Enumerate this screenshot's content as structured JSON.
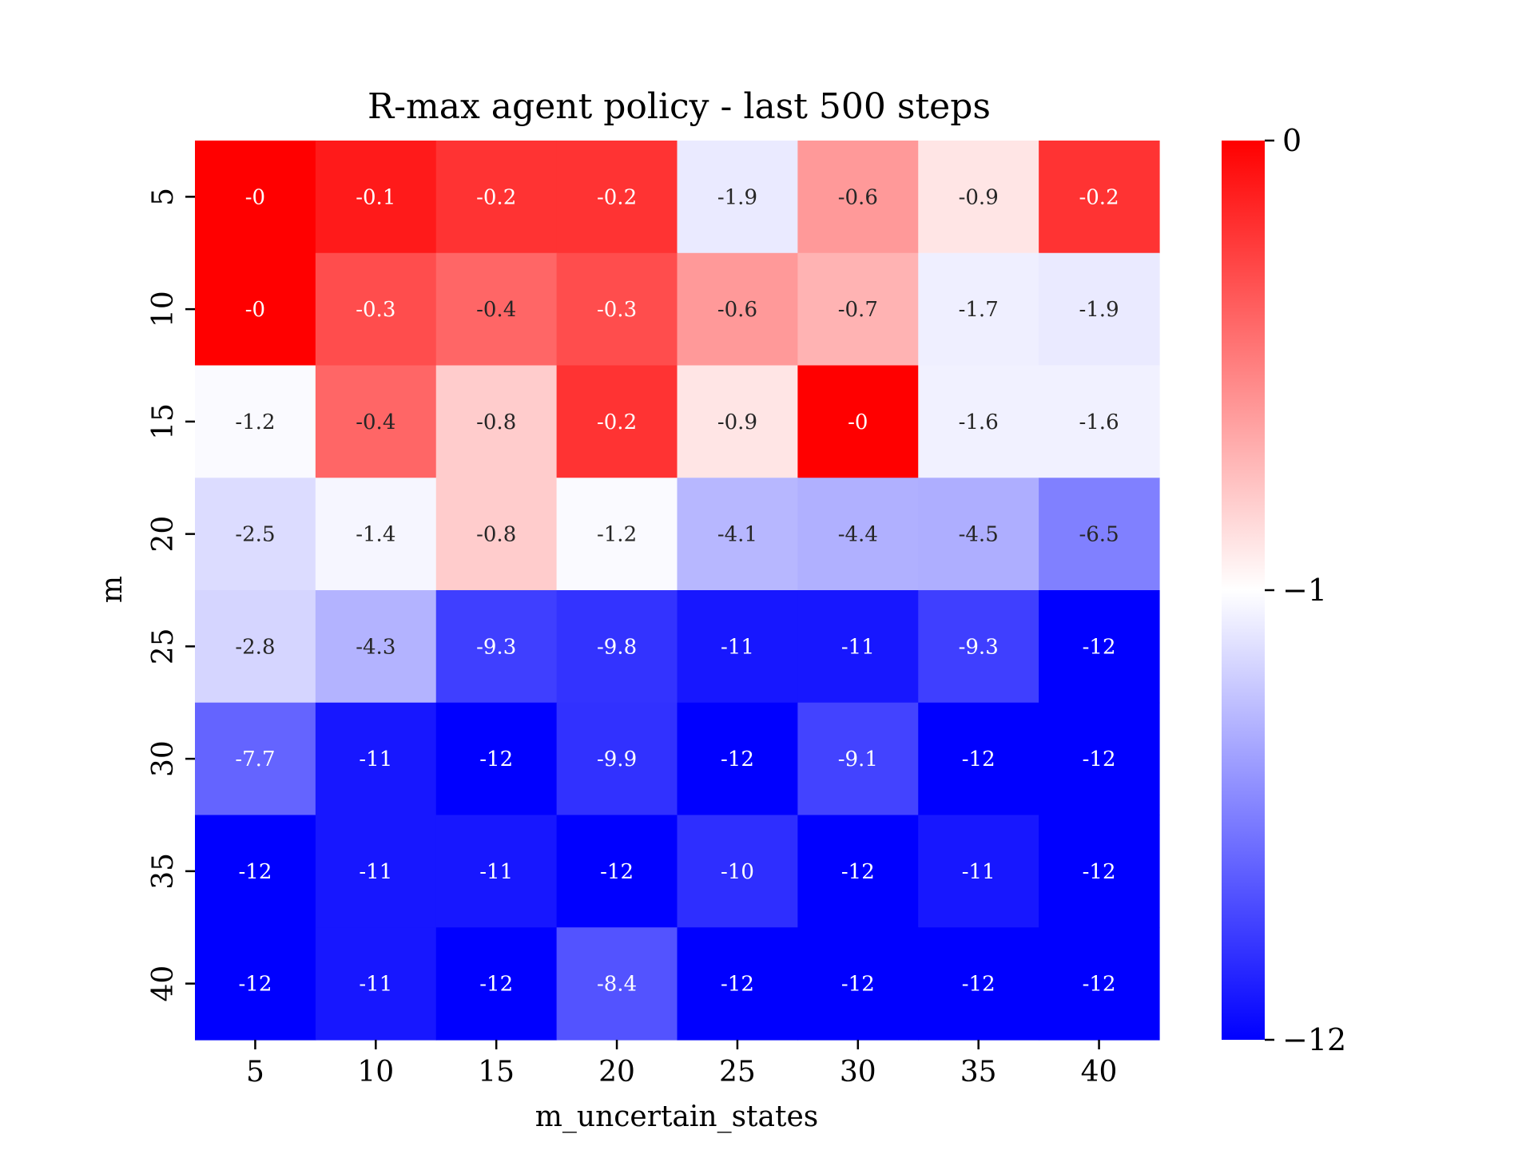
{
  "chart_data": {
    "type": "heatmap",
    "title": "R-max agent policy - last 500 steps",
    "xlabel": "m_uncertain_states",
    "ylabel": "m",
    "x_categories": [
      "5",
      "10",
      "15",
      "20",
      "25",
      "30",
      "35",
      "40"
    ],
    "y_categories": [
      "5",
      "10",
      "15",
      "20",
      "25",
      "30",
      "35",
      "40"
    ],
    "values": [
      [
        0,
        -0.1,
        -0.2,
        -0.2,
        -1.9,
        -0.6,
        -0.9,
        -0.2
      ],
      [
        0,
        -0.3,
        -0.4,
        -0.3,
        -0.6,
        -0.7,
        -1.7,
        -1.9
      ],
      [
        -1.2,
        -0.4,
        -0.8,
        -0.2,
        -0.9,
        0,
        -1.6,
        -1.6
      ],
      [
        -2.5,
        -1.4,
        -0.8,
        -1.2,
        -4.1,
        -4.4,
        -4.5,
        -6.5
      ],
      [
        -2.8,
        -4.3,
        -9.3,
        -9.8,
        -11,
        -11,
        -9.3,
        -12
      ],
      [
        -7.7,
        -11,
        -12,
        -9.9,
        -12,
        -9.1,
        -12,
        -12
      ],
      [
        -12,
        -11,
        -11,
        -12,
        -10,
        -12,
        -11,
        -12
      ],
      [
        -12,
        -11,
        -12,
        -8.4,
        -12,
        -12,
        -12,
        -12
      ]
    ],
    "labels": [
      [
        "-0",
        "-0.1",
        "-0.2",
        "-0.2",
        "-1.9",
        "-0.6",
        "-0.9",
        "-0.2"
      ],
      [
        "-0",
        "-0.3",
        "-0.4",
        "-0.3",
        "-0.6",
        "-0.7",
        "-1.7",
        "-1.9"
      ],
      [
        "-1.2",
        "-0.4",
        "-0.8",
        "-0.2",
        "-0.9",
        "-0",
        "-1.6",
        "-1.6"
      ],
      [
        "-2.5",
        "-1.4",
        "-0.8",
        "-1.2",
        "-4.1",
        "-4.4",
        "-4.5",
        "-6.5"
      ],
      [
        "-2.8",
        "-4.3",
        "-9.3",
        "-9.8",
        "-11",
        "-11",
        "-9.3",
        "-12"
      ],
      [
        "-7.7",
        "-11",
        "-12",
        "-9.9",
        "-12",
        "-9.1",
        "-12",
        "-12"
      ],
      [
        "-12",
        "-11",
        "-11",
        "-12",
        "-10",
        "-12",
        "-11",
        "-12"
      ],
      [
        "-12",
        "-11",
        "-12",
        "-8.4",
        "-12",
        "-12",
        "-12",
        "-12"
      ]
    ],
    "colormap": {
      "name": "bwr",
      "vmin": -12,
      "vcenter": -1,
      "vmax": 0,
      "low_color": "#0000ff",
      "center_color": "#ffffff",
      "high_color": "#ff0000"
    },
    "colorbar": {
      "ticks": [
        0,
        -1,
        -12
      ],
      "tick_labels": [
        "0",
        "−1",
        "−12"
      ]
    }
  }
}
